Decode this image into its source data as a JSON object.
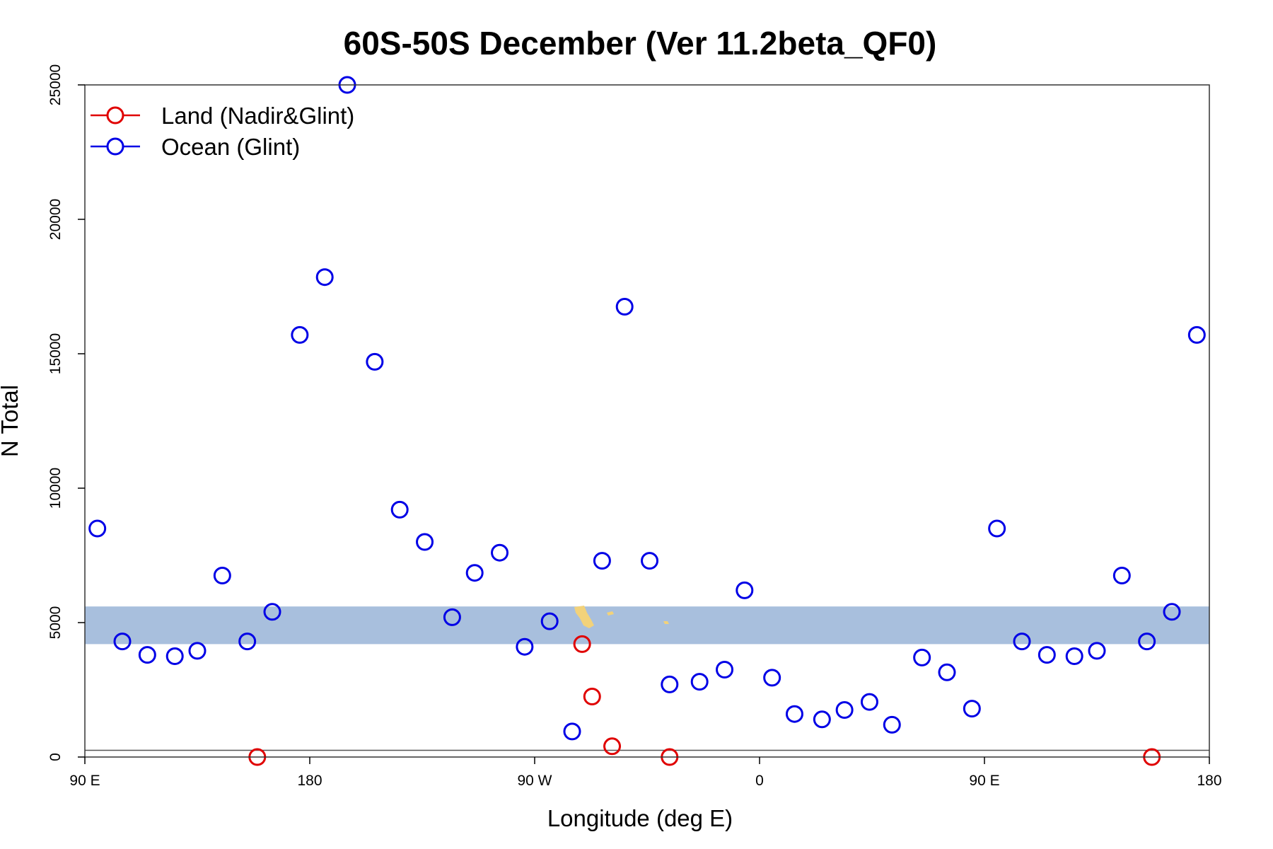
{
  "chart_data": {
    "type": "scatter",
    "title": "60S-50S December (Ver 11.2beta_QF0)",
    "xlabel": "Longitude (deg E)",
    "ylabel": "N Total",
    "xlim": [
      90,
      540
    ],
    "ylim": [
      0,
      25000
    ],
    "x_ticks": [
      {
        "value": 90,
        "label": "90 E"
      },
      {
        "value": 180,
        "label": "180"
      },
      {
        "value": 270,
        "label": "90 W"
      },
      {
        "value": 360,
        "label": "0"
      },
      {
        "value": 450,
        "label": "90 E"
      },
      {
        "value": 540,
        "label": "180"
      }
    ],
    "y_ticks": [
      {
        "value": 0,
        "label": "0"
      },
      {
        "value": 5000,
        "label": "5000"
      },
      {
        "value": 10000,
        "label": "10000"
      },
      {
        "value": 15000,
        "label": "15000"
      },
      {
        "value": 20000,
        "label": "20000"
      },
      {
        "value": 25000,
        "label": "25000"
      }
    ],
    "legend_position": "top-left",
    "grid": false,
    "map_band": {
      "y_min": 4200,
      "y_max": 5600,
      "color": "#a8bfdd",
      "land_color": "#f2d27a"
    },
    "baseline": 250,
    "series": [
      {
        "name": "Land (Nadir&Glint)",
        "color": "#e00000",
        "points": [
          [
            159,
            0
          ],
          [
            289,
            4200
          ],
          [
            293,
            2250
          ],
          [
            301,
            400
          ],
          [
            324,
            0
          ],
          [
            517,
            0
          ]
        ]
      },
      {
        "name": "Ocean (Glint)",
        "color": "#0000e6",
        "points": [
          [
            95,
            8500
          ],
          [
            105,
            4300
          ],
          [
            115,
            3800
          ],
          [
            126,
            3750
          ],
          [
            135,
            3950
          ],
          [
            145,
            6750
          ],
          [
            155,
            4300
          ],
          [
            165,
            5400
          ],
          [
            176,
            15700
          ],
          [
            186,
            17850
          ],
          [
            195,
            25000
          ],
          [
            206,
            14700
          ],
          [
            216,
            9200
          ],
          [
            226,
            8000
          ],
          [
            237,
            5200
          ],
          [
            246,
            6850
          ],
          [
            256,
            7600
          ],
          [
            266,
            4100
          ],
          [
            276,
            5050
          ],
          [
            285,
            950
          ],
          [
            297,
            7300
          ],
          [
            306,
            16750
          ],
          [
            316,
            7300
          ],
          [
            324,
            2700
          ],
          [
            336,
            2800
          ],
          [
            346,
            3250
          ],
          [
            354,
            6200
          ],
          [
            365,
            2950
          ],
          [
            374,
            1600
          ],
          [
            385,
            1400
          ],
          [
            394,
            1750
          ],
          [
            404,
            2050
          ],
          [
            413,
            1200
          ],
          [
            425,
            3700
          ],
          [
            435,
            3150
          ],
          [
            445,
            1800
          ],
          [
            455,
            8500
          ],
          [
            465,
            4300
          ],
          [
            475,
            3800
          ],
          [
            486,
            3750
          ],
          [
            495,
            3950
          ],
          [
            505,
            6750
          ],
          [
            515,
            4300
          ],
          [
            525,
            5400
          ],
          [
            535,
            15700
          ]
        ]
      }
    ]
  }
}
